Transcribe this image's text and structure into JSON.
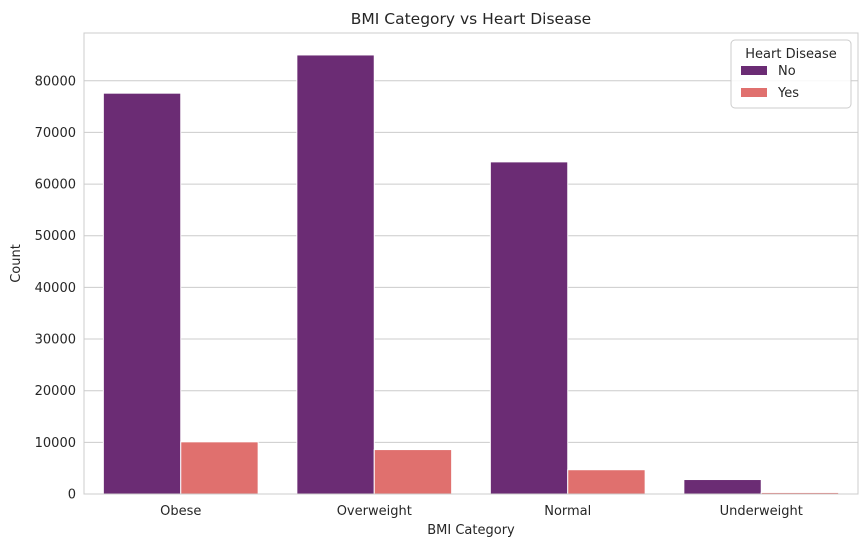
{
  "chart_data": {
    "type": "bar",
    "title": "BMI Category vs Heart Disease",
    "xlabel": "BMI Category",
    "ylabel": "Count",
    "categories": [
      "Obese",
      "Overweight",
      "Normal",
      "Underweight"
    ],
    "series": [
      {
        "name": "No",
        "color": "#6b2c74",
        "values": [
          77600,
          85000,
          64300,
          2800
        ]
      },
      {
        "name": "Yes",
        "color": "#e0706e",
        "values": [
          10100,
          8600,
          4700,
          300
        ]
      }
    ],
    "ylim": [
      0,
      89250
    ],
    "yticks": [
      0,
      10000,
      20000,
      30000,
      40000,
      50000,
      60000,
      70000,
      80000
    ],
    "grid": true,
    "legend": {
      "title": "Heart Disease",
      "position": "top-right"
    }
  }
}
